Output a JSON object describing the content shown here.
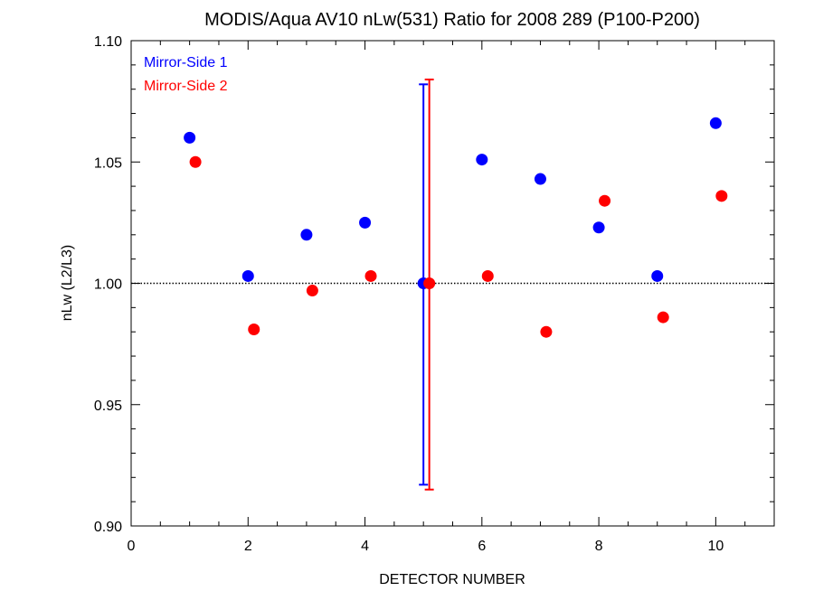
{
  "chart_data": {
    "type": "scatter",
    "title": "MODIS/Aqua AV10 nLw(531) Ratio for 2008 289 (P100-P200)",
    "xlabel": "DETECTOR NUMBER",
    "ylabel": "nLw (L2/L3)",
    "xlim": [
      0,
      11
    ],
    "ylim": [
      0.9,
      1.1
    ],
    "xticks": [
      0,
      2,
      4,
      6,
      8,
      10
    ],
    "xtick_labels": [
      "0",
      "2",
      "4",
      "6",
      "8",
      "10"
    ],
    "yticks": [
      0.9,
      0.95,
      1.0,
      1.05,
      1.1
    ],
    "ytick_labels": [
      "0.90",
      "0.95",
      "1.00",
      "1.05",
      "1.10"
    ],
    "reference_line": {
      "y": 1.0,
      "style": "dotted"
    },
    "legend_position": "top-left",
    "series": [
      {
        "name": "Mirror-Side 1",
        "color": "#0000ff",
        "points": [
          {
            "x": 1,
            "y": 1.06
          },
          {
            "x": 2,
            "y": 1.003
          },
          {
            "x": 3,
            "y": 1.02
          },
          {
            "x": 4,
            "y": 1.025
          },
          {
            "x": 5,
            "y": 1.0
          },
          {
            "x": 6,
            "y": 1.051
          },
          {
            "x": 7,
            "y": 1.043
          },
          {
            "x": 8,
            "y": 1.023
          },
          {
            "x": 9,
            "y": 1.003
          },
          {
            "x": 10,
            "y": 1.066
          }
        ],
        "error_bar": {
          "x": 5,
          "low": 0.917,
          "high": 1.082
        }
      },
      {
        "name": "Mirror-Side 2",
        "color": "#ff0000",
        "points": [
          {
            "x": 1.1,
            "y": 1.05
          },
          {
            "x": 2.1,
            "y": 0.981
          },
          {
            "x": 3.1,
            "y": 0.997
          },
          {
            "x": 4.1,
            "y": 1.003
          },
          {
            "x": 5.1,
            "y": 1.0
          },
          {
            "x": 6.1,
            "y": 1.003
          },
          {
            "x": 7.1,
            "y": 0.98
          },
          {
            "x": 8.1,
            "y": 1.034
          },
          {
            "x": 9.1,
            "y": 0.986
          },
          {
            "x": 10.1,
            "y": 1.036
          }
        ],
        "error_bar": {
          "x": 5.1,
          "low": 0.915,
          "high": 1.084
        }
      }
    ]
  }
}
